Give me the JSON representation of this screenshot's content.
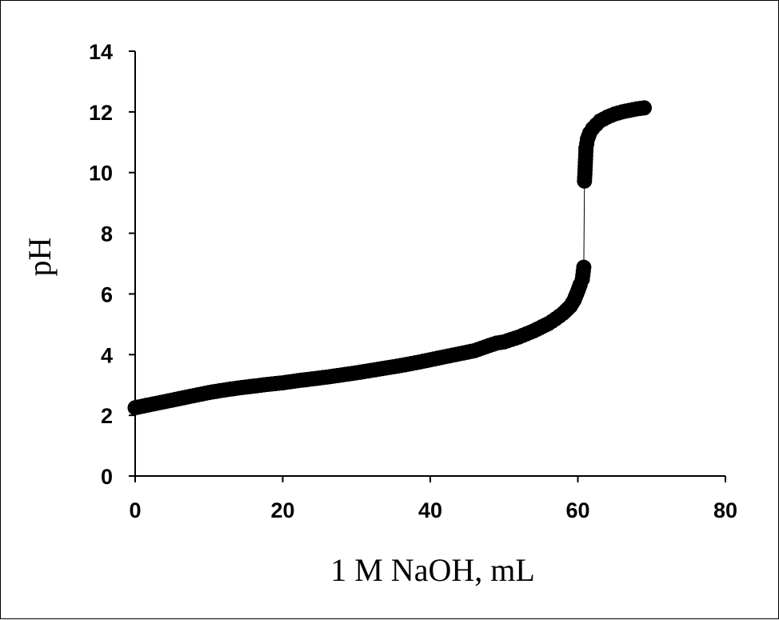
{
  "chart_data": {
    "type": "scatter",
    "title": "",
    "xlabel": "1 M NaOH, mL",
    "ylabel": "pH",
    "xlim": [
      0,
      80
    ],
    "ylim": [
      0,
      14
    ],
    "x_ticks": [
      0,
      20,
      40,
      60,
      80
    ],
    "y_ticks": [
      0,
      2,
      4,
      6,
      8,
      10,
      12,
      14
    ],
    "grid": false,
    "legend": "none",
    "marker_color": "#000000",
    "line_color": "#000000",
    "series": [
      {
        "x": [
          0,
          2,
          4,
          6,
          8,
          10,
          12,
          14,
          16,
          18,
          20,
          22,
          24,
          26,
          28,
          30,
          32,
          34,
          36,
          38,
          40,
          42,
          44,
          46,
          48,
          49,
          50,
          52,
          54,
          56,
          57,
          58,
          59,
          59.5,
          60,
          60.3,
          60.6,
          60.8,
          60.9,
          61,
          61.1,
          61.3,
          61.6,
          62,
          62.5,
          63,
          64,
          65,
          66,
          67,
          68,
          69
        ],
        "y": [
          2.25,
          2.35,
          2.45,
          2.55,
          2.65,
          2.75,
          2.83,
          2.9,
          2.96,
          3.02,
          3.07,
          3.14,
          3.2,
          3.26,
          3.33,
          3.4,
          3.48,
          3.56,
          3.64,
          3.73,
          3.83,
          3.93,
          4.03,
          4.13,
          4.3,
          4.38,
          4.42,
          4.58,
          4.78,
          5.02,
          5.18,
          5.36,
          5.6,
          5.8,
          6.1,
          6.3,
          6.48,
          6.88,
          9.72,
          10.2,
          10.8,
          11.1,
          11.3,
          11.45,
          11.58,
          11.7,
          11.83,
          11.93,
          12.0,
          12.05,
          12.1,
          12.13
        ]
      }
    ]
  }
}
